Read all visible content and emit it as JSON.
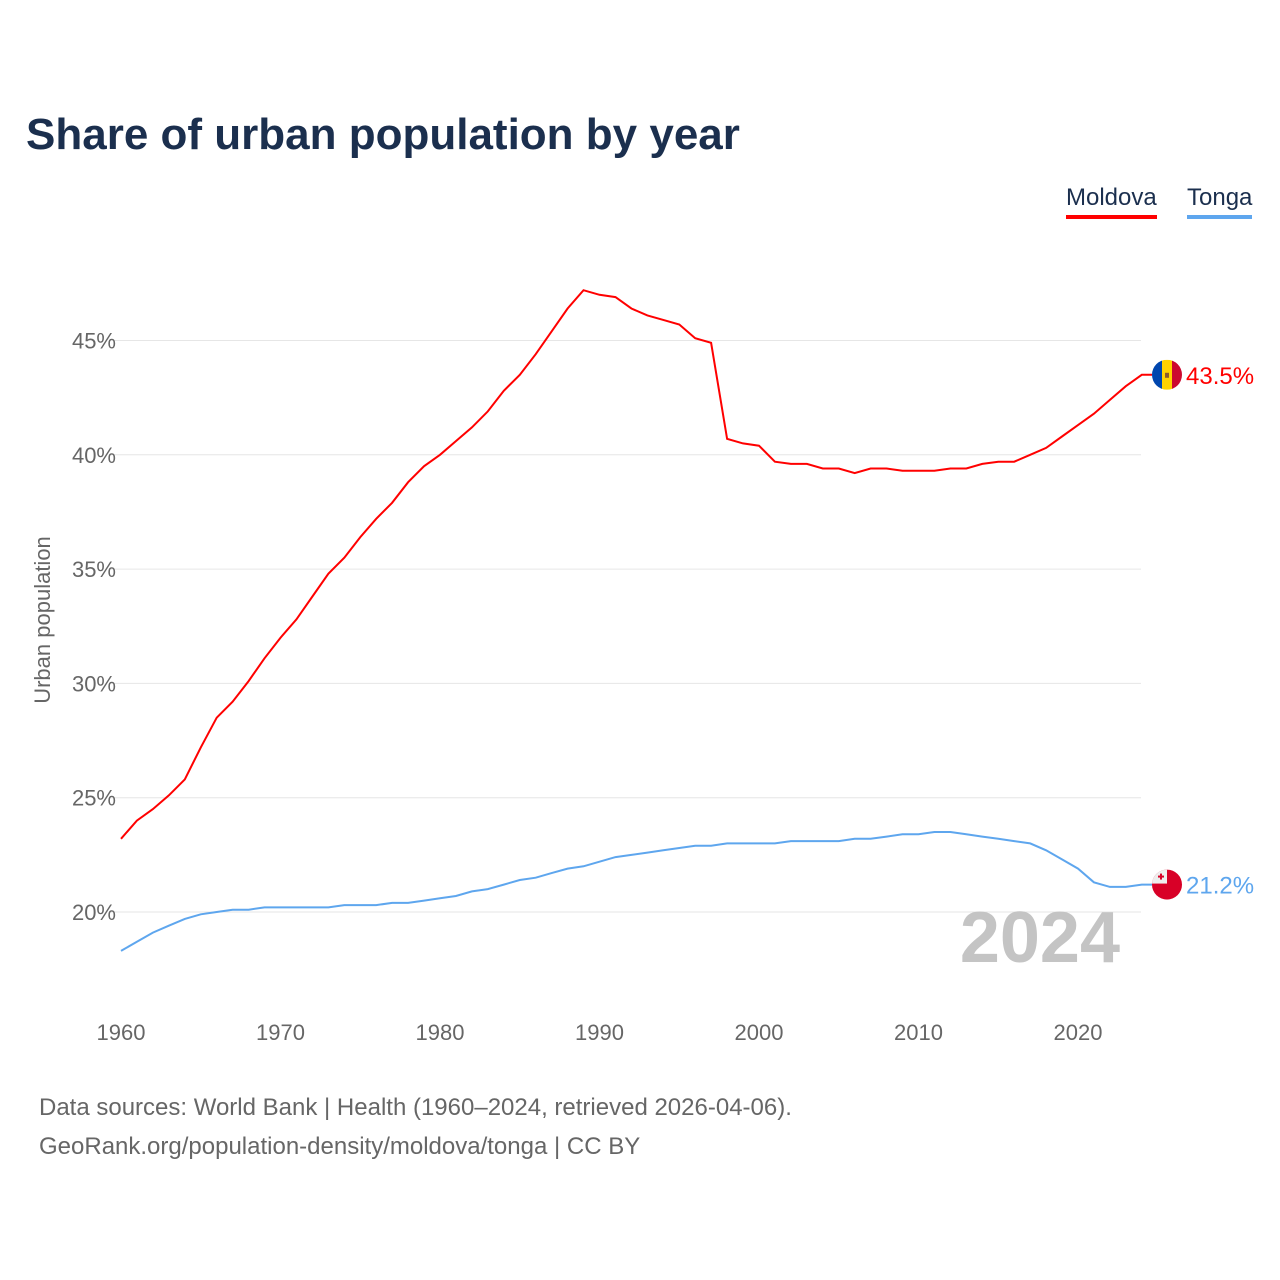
{
  "chart_data": {
    "type": "line",
    "title": "Share of urban population by year",
    "xlabel": "",
    "ylabel": "Urban population",
    "xlim": [
      1960,
      2024
    ],
    "ylim": [
      16.2,
      48.5
    ],
    "x_ticks": [
      1960,
      1970,
      1980,
      1990,
      2000,
      2010,
      2020
    ],
    "y_ticks": [
      20,
      25,
      30,
      35,
      40,
      45
    ],
    "y_tick_labels": [
      "20%",
      "25%",
      "30%",
      "35%",
      "40%",
      "45%"
    ],
    "x_tick_labels": [
      "1960",
      "1970",
      "1980",
      "1990",
      "2000",
      "2010",
      "2020"
    ],
    "grid": true,
    "legend_position": "top-right",
    "current_year_label": "2024",
    "x": [
      1960,
      1961,
      1962,
      1963,
      1964,
      1965,
      1966,
      1967,
      1968,
      1969,
      1970,
      1971,
      1972,
      1973,
      1974,
      1975,
      1976,
      1977,
      1978,
      1979,
      1980,
      1981,
      1982,
      1983,
      1984,
      1985,
      1986,
      1987,
      1988,
      1989,
      1990,
      1991,
      1992,
      1993,
      1994,
      1995,
      1996,
      1997,
      1998,
      1999,
      2000,
      2001,
      2002,
      2003,
      2004,
      2005,
      2006,
      2007,
      2008,
      2009,
      2010,
      2011,
      2012,
      2013,
      2014,
      2015,
      2016,
      2017,
      2018,
      2019,
      2020,
      2021,
      2022,
      2023,
      2024
    ],
    "series": [
      {
        "name": "Moldova",
        "color": "#ff0000",
        "end_label": "43.5%",
        "flag": "moldova-flag",
        "values": [
          23.2,
          24.0,
          24.5,
          25.1,
          25.8,
          27.2,
          28.5,
          29.2,
          30.1,
          31.1,
          32.0,
          32.8,
          33.8,
          34.8,
          35.5,
          36.4,
          37.2,
          37.9,
          38.8,
          39.5,
          40.0,
          40.6,
          41.2,
          41.9,
          42.8,
          43.5,
          44.4,
          45.4,
          46.4,
          47.2,
          47.0,
          46.9,
          46.4,
          46.1,
          45.9,
          45.7,
          45.1,
          44.9,
          40.7,
          40.5,
          40.4,
          39.7,
          39.6,
          39.6,
          39.4,
          39.4,
          39.2,
          39.4,
          39.4,
          39.3,
          39.3,
          39.3,
          39.4,
          39.4,
          39.6,
          39.7,
          39.7,
          40.0,
          40.3,
          40.8,
          41.3,
          41.8,
          42.4,
          43.0,
          43.5
        ]
      },
      {
        "name": "Tonga",
        "color": "#5ea6ee",
        "end_label": "21.2%",
        "flag": "tonga-flag",
        "values": [
          18.3,
          18.7,
          19.1,
          19.4,
          19.7,
          19.9,
          20.0,
          20.1,
          20.1,
          20.2,
          20.2,
          20.2,
          20.2,
          20.2,
          20.3,
          20.3,
          20.3,
          20.4,
          20.4,
          20.5,
          20.6,
          20.7,
          20.9,
          21.0,
          21.2,
          21.4,
          21.5,
          21.7,
          21.9,
          22.0,
          22.2,
          22.4,
          22.5,
          22.6,
          22.7,
          22.8,
          22.9,
          22.9,
          23.0,
          23.0,
          23.0,
          23.0,
          23.1,
          23.1,
          23.1,
          23.1,
          23.2,
          23.2,
          23.3,
          23.4,
          23.4,
          23.5,
          23.5,
          23.4,
          23.3,
          23.2,
          23.1,
          23.0,
          22.7,
          22.3,
          21.9,
          21.3,
          21.1,
          21.1,
          21.2
        ]
      }
    ]
  },
  "source": {
    "line1": "Data sources: World Bank | Health (1960–2024, retrieved 2026-04-06).",
    "line2": "GeoRank.org/population-density/moldova/tonga | CC BY"
  }
}
